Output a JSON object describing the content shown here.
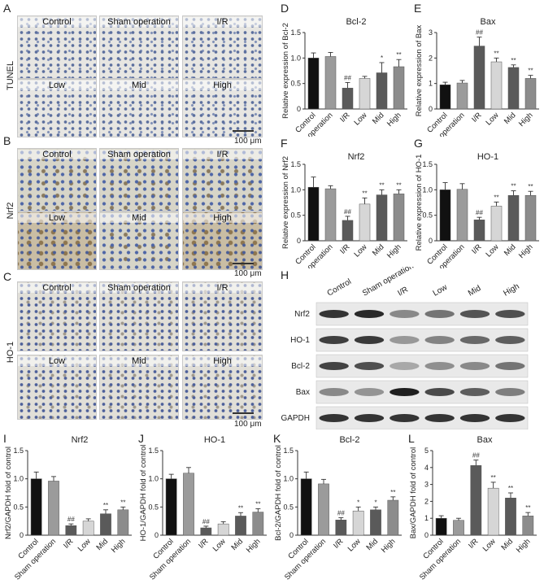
{
  "panel_letters": {
    "a": "A",
    "b": "B",
    "c": "C",
    "d": "D",
    "e": "E",
    "f": "F",
    "g": "G",
    "h": "H",
    "i": "I",
    "j": "J",
    "k": "K",
    "l": "L"
  },
  "micrographs": {
    "tunel": {
      "row_label": "TUNEL",
      "top": [
        "Control",
        "Sham operation",
        "I/R"
      ],
      "bottom": [
        "Low",
        "Mid",
        "High"
      ]
    },
    "nrf2": {
      "row_label": "Nrf2",
      "top": [
        "Control",
        "Sham operation",
        "I/R"
      ],
      "bottom": [
        "Low",
        "Mid",
        "High"
      ]
    },
    "ho1": {
      "row_label": "HO-1",
      "top": [
        "Control",
        "Sham operation",
        "I/R"
      ],
      "bottom": [
        "Low",
        "Mid",
        "High"
      ]
    },
    "scale_bar": "100 μm"
  },
  "western_blot": {
    "lanes": [
      "Control",
      "Sham operation",
      "I/R",
      "Low",
      "Mid",
      "High"
    ],
    "rows": [
      "Nrf2",
      "HO-1",
      "Bcl-2",
      "Bax",
      "GAPDH"
    ]
  },
  "colors": {
    "control": "#111111",
    "sham": "#9b9b9b",
    "ir": "#5a5a5a",
    "low": "#d6d6d6",
    "mid": "#5a5a5a",
    "high": "#8c8c8c"
  },
  "chart_data": [
    {
      "panel": "D",
      "type": "bar",
      "title": "Bcl-2",
      "ylabel": "Relative expression of Bcl-2",
      "categories": [
        "Control",
        "Sham operation",
        "I/R",
        "Low",
        "Mid",
        "High"
      ],
      "values": [
        1.0,
        1.03,
        0.41,
        0.6,
        0.71,
        0.83
      ],
      "errors": [
        0.1,
        0.08,
        0.11,
        0.04,
        0.2,
        0.14
      ],
      "sig": [
        "",
        "",
        "##",
        "",
        "*",
        "**"
      ],
      "ylim": [
        0,
        1.5
      ],
      "yticks": [
        "0",
        "0.5",
        "1.0",
        "1.5"
      ]
    },
    {
      "panel": "E",
      "type": "bar",
      "title": "Bax",
      "ylabel": "Relative expression of Bax",
      "categories": [
        "Control",
        "Sham operation",
        "I/R",
        "Low",
        "Mid",
        "High"
      ],
      "values": [
        0.95,
        1.02,
        2.47,
        1.85,
        1.63,
        1.2
      ],
      "errors": [
        0.1,
        0.1,
        0.35,
        0.15,
        0.1,
        0.12
      ],
      "sig": [
        "",
        "",
        "##",
        "**",
        "**",
        "**"
      ],
      "ylim": [
        0,
        3
      ],
      "yticks": [
        "0",
        "1",
        "2",
        "3"
      ]
    },
    {
      "panel": "F",
      "type": "bar",
      "title": "Nrf2",
      "ylabel": "Relative expression of Nrf2",
      "categories": [
        "Control",
        "Sham operation",
        "I/R",
        "Low",
        "Mid",
        "High"
      ],
      "values": [
        1.05,
        1.02,
        0.4,
        0.72,
        0.9,
        0.92
      ],
      "errors": [
        0.2,
        0.06,
        0.08,
        0.12,
        0.1,
        0.08
      ],
      "sig": [
        "",
        "",
        "##",
        "**",
        "**",
        "**"
      ],
      "ylim": [
        0,
        1.5
      ],
      "yticks": [
        "0",
        "0.5",
        "1.0",
        "1.5"
      ]
    },
    {
      "panel": "G",
      "type": "bar",
      "title": "HO-1",
      "ylabel": "Relative expression of HO-1",
      "categories": [
        "Control",
        "Sham operation",
        "I/R",
        "Low",
        "Mid",
        "High"
      ],
      "values": [
        1.0,
        1.01,
        0.41,
        0.68,
        0.89,
        0.89
      ],
      "errors": [
        0.14,
        0.11,
        0.05,
        0.08,
        0.09,
        0.08
      ],
      "sig": [
        "",
        "",
        "##",
        "**",
        "**",
        "**"
      ],
      "ylim": [
        0,
        1.5
      ],
      "yticks": [
        "0",
        "0.5",
        "1.0",
        "1.5"
      ]
    },
    {
      "panel": "I",
      "type": "bar",
      "title": "Nrf2",
      "ylabel": "Nrf2/GAPDH fold of control",
      "categories": [
        "Control",
        "Sham operation",
        "I/R",
        "Low",
        "Mid",
        "High"
      ],
      "values": [
        1.0,
        0.96,
        0.17,
        0.25,
        0.38,
        0.45
      ],
      "errors": [
        0.12,
        0.08,
        0.03,
        0.04,
        0.07,
        0.05
      ],
      "sig": [
        "",
        "",
        "##",
        "",
        "**",
        "**"
      ],
      "ylim": [
        0,
        1.5
      ],
      "yticks": [
        "0",
        "0.5",
        "1.0",
        "1.5"
      ]
    },
    {
      "panel": "J",
      "type": "bar",
      "title": "HO-1",
      "ylabel": "HO-1/GAPDH fold of control",
      "categories": [
        "Control",
        "Sham operation",
        "I/R",
        "Low",
        "Mid",
        "High"
      ],
      "values": [
        1.0,
        1.1,
        0.13,
        0.2,
        0.34,
        0.41
      ],
      "errors": [
        0.08,
        0.1,
        0.03,
        0.04,
        0.06,
        0.06
      ],
      "sig": [
        "",
        "",
        "##",
        "",
        "**",
        "**"
      ],
      "ylim": [
        0,
        1.5
      ],
      "yticks": [
        "0",
        "0.5",
        "1.0",
        "1.5"
      ]
    },
    {
      "panel": "K",
      "type": "bar",
      "title": "Bcl-2",
      "ylabel": "Bcl-2/GAPDH fold of control",
      "categories": [
        "Control",
        "Sham operation",
        "I/R",
        "Low",
        "Mid",
        "High"
      ],
      "values": [
        1.0,
        0.91,
        0.27,
        0.43,
        0.45,
        0.62
      ],
      "errors": [
        0.12,
        0.08,
        0.04,
        0.07,
        0.05,
        0.06
      ],
      "sig": [
        "",
        "",
        "##",
        "*",
        "*",
        "**"
      ],
      "ylim": [
        0,
        1.5
      ],
      "yticks": [
        "0",
        "0.5",
        "1.0",
        "1.5"
      ]
    },
    {
      "panel": "L",
      "type": "bar",
      "title": "Bax",
      "ylabel": "Bax/GAPDH fold of control",
      "categories": [
        "Control",
        "Sham operation",
        "I/R",
        "Low",
        "Mid",
        "High"
      ],
      "values": [
        1.0,
        0.88,
        4.12,
        2.78,
        2.2,
        1.14
      ],
      "errors": [
        0.15,
        0.12,
        0.32,
        0.35,
        0.3,
        0.2
      ],
      "sig": [
        "",
        "",
        "##",
        "**",
        "**",
        "**"
      ],
      "ylim": [
        0,
        5
      ],
      "yticks": [
        "0",
        "1",
        "2",
        "3",
        "4",
        "5"
      ]
    }
  ]
}
